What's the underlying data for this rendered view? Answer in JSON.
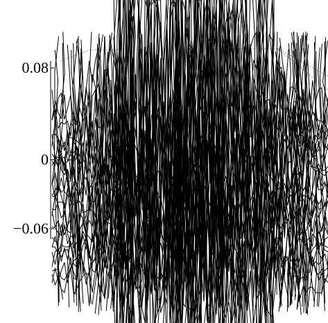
{
  "chart_data": {
    "type": "surface-mesh",
    "title": "",
    "xlabel": "",
    "ylabel": "",
    "zlabel": "",
    "z_ticks": [
      {
        "value": 0.08,
        "label": "0.08"
      },
      {
        "value": 0,
        "label": "0"
      },
      {
        "value": -0.06,
        "label": "−0.06"
      }
    ],
    "zlim": [
      -0.06,
      0.08
    ],
    "view": "3d-perspective-zoomed",
    "grid": false,
    "legend": "none",
    "line_color": "#000000",
    "background": "#ffffff"
  }
}
